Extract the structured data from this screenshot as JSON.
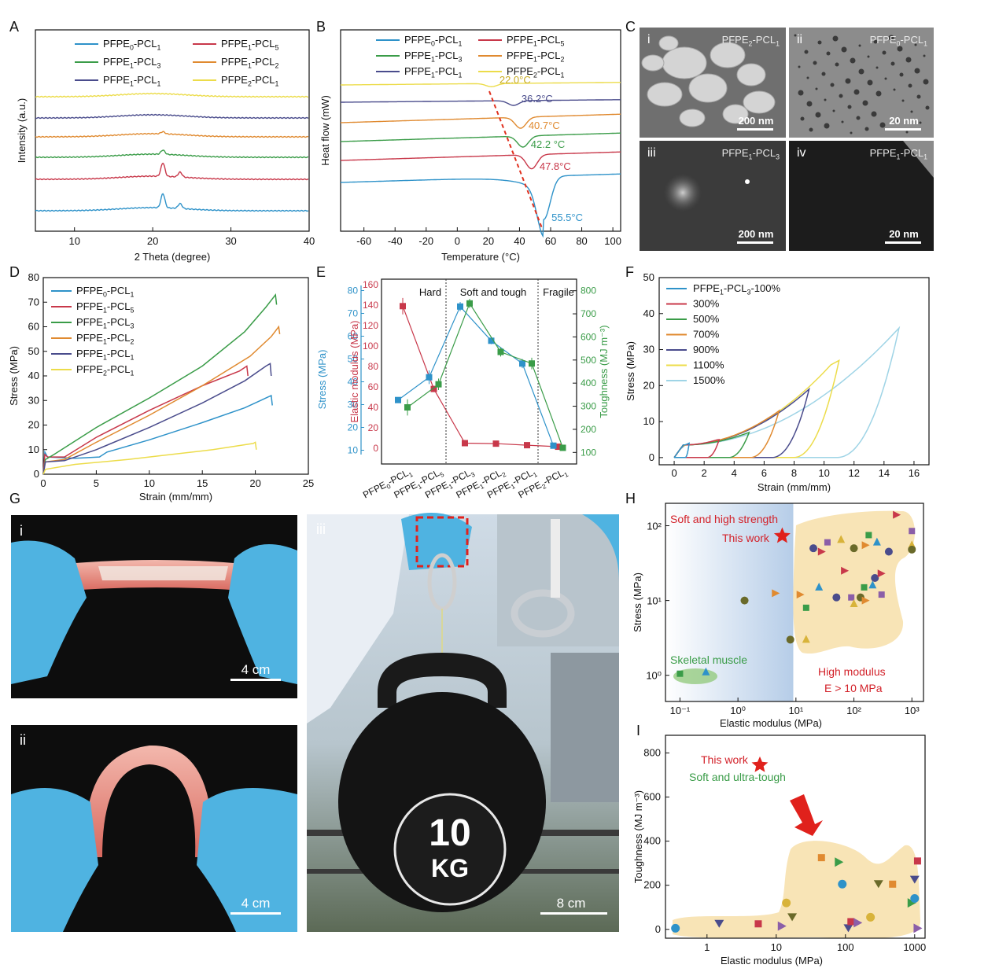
{
  "panel_letters": [
    "A",
    "B",
    "C",
    "D",
    "E",
    "F",
    "G",
    "H",
    "I"
  ],
  "colors": {
    "PFPE0-PCL1": "#2e92c9",
    "PFPE1-PCL5": "#c8384a",
    "PFPE1-PCL3": "#3a9c48",
    "PFPE1-PCL2": "#e08a30",
    "PFPE1-PCL1": "#4a4c8c",
    "PFPE2-PCL1": "#ecdc4a",
    "light": "#9fd4e6",
    "dark": "#222222"
  },
  "legend6": [
    {
      "key": "PFPE0-PCL1",
      "base": "PFPE",
      "s1": "0",
      "mid": "-PCL",
      "s2": "1"
    },
    {
      "key": "PFPE1-PCL5",
      "base": "PFPE",
      "s1": "1",
      "mid": "-PCL",
      "s2": "5"
    },
    {
      "key": "PFPE1-PCL3",
      "base": "PFPE",
      "s1": "1",
      "mid": "-PCL",
      "s2": "3"
    },
    {
      "key": "PFPE1-PCL2",
      "base": "PFPE",
      "s1": "1",
      "mid": "-PCL",
      "s2": "2"
    },
    {
      "key": "PFPE1-PCL1",
      "base": "PFPE",
      "s1": "1",
      "mid": "-PCL",
      "s2": "1"
    },
    {
      "key": "PFPE2-PCL1",
      "base": "PFPE",
      "s1": "2",
      "mid": "-PCL",
      "s2": "1"
    }
  ],
  "panelC": {
    "labels": [
      "i",
      "ii",
      "iii",
      "iv"
    ],
    "names": [
      {
        "b": "PFPE",
        "s1": "2",
        "m": "-PCL",
        "s2": "1"
      },
      {
        "b": "PFPE",
        "s1": "0",
        "m": "-PCL",
        "s2": "1"
      },
      {
        "b": "PFPE",
        "s1": "1",
        "m": "-PCL",
        "s2": "3"
      },
      {
        "b": "PFPE",
        "s1": "1",
        "m": "-PCL",
        "s2": "1"
      }
    ],
    "scales": [
      "200 nm",
      "20 nm",
      "200 nm",
      "20 nm"
    ]
  },
  "panelG": {
    "labels": [
      "i",
      "ii",
      "iii"
    ],
    "scales": [
      "4 cm",
      "4 cm",
      "8 cm"
    ],
    "kettlebell_text": [
      "10",
      "KG"
    ]
  },
  "chart_data": [
    {
      "id": "A",
      "type": "line",
      "xlabel": "2 Theta (degree)",
      "ylabel": "Intensity (a.u.)",
      "xlim": [
        5,
        40
      ],
      "xticks": [
        10,
        20,
        30,
        40
      ],
      "series": [
        {
          "key": "PFPE0-PCL1",
          "peaks": [
            [
              21.3,
              1.0
            ],
            [
              23.5,
              0.35
            ]
          ]
        },
        {
          "key": "PFPE1-PCL5",
          "peaks": [
            [
              21.3,
              0.95
            ],
            [
              23.5,
              0.35
            ]
          ]
        },
        {
          "key": "PFPE1-PCL3",
          "peaks": [
            [
              21.3,
              0.3
            ]
          ]
        },
        {
          "key": "PFPE1-PCL2",
          "peaks": [
            [
              21.3,
              0.15
            ]
          ]
        },
        {
          "key": "PFPE1-PCL1",
          "peaks": []
        },
        {
          "key": "PFPE2-PCL1",
          "peaks": []
        }
      ]
    },
    {
      "id": "B",
      "type": "line",
      "xlabel": "Temperature (°C)",
      "ylabel": "Heat flow (mW)",
      "xlim": [
        -75,
        105
      ],
      "xticks": [
        -60,
        -40,
        -20,
        0,
        20,
        40,
        60,
        80,
        100
      ],
      "series": [
        {
          "key": "PFPE0-PCL1",
          "tm": 55.5,
          "label": "55.5°C"
        },
        {
          "key": "PFPE1-PCL5",
          "tm": 47.8,
          "label": "47.8°C"
        },
        {
          "key": "PFPE1-PCL3",
          "tm": 42.2,
          "label": "42.2 °C"
        },
        {
          "key": "PFPE1-PCL2",
          "tm": 40.7,
          "label": "40.7°C"
        },
        {
          "key": "PFPE1-PCL1",
          "tm": 36.2,
          "label": "36.2°C"
        },
        {
          "key": "PFPE2-PCL1",
          "tm": 22.0,
          "label": "22.0°C"
        }
      ]
    },
    {
      "id": "D",
      "type": "line",
      "xlabel": "Strain (mm/mm)",
      "ylabel": "Stress (MPa)",
      "xlim": [
        0,
        25
      ],
      "ylim": [
        0,
        80
      ],
      "xticks": [
        0,
        5,
        10,
        15,
        20,
        25
      ],
      "yticks": [
        0,
        10,
        20,
        30,
        40,
        50,
        60,
        70,
        80
      ],
      "series": [
        {
          "key": "PFPE0-PCL1",
          "points": [
            [
              0,
              0
            ],
            [
              0.15,
              9
            ],
            [
              0.4,
              7
            ],
            [
              3,
              6.5
            ],
            [
              5.3,
              7
            ],
            [
              6,
              9
            ],
            [
              10,
              14
            ],
            [
              15,
              21
            ],
            [
              19,
              27
            ],
            [
              21,
              31
            ],
            [
              21.5,
              32
            ],
            [
              21.6,
              28
            ]
          ]
        },
        {
          "key": "PFPE1-PCL5",
          "points": [
            [
              0,
              0
            ],
            [
              0.15,
              8
            ],
            [
              0.4,
              7
            ],
            [
              2,
              7
            ],
            [
              5,
              15
            ],
            [
              10,
              26
            ],
            [
              15,
              36
            ],
            [
              18.5,
              42
            ],
            [
              19.2,
              44
            ],
            [
              19.3,
              40
            ]
          ]
        },
        {
          "key": "PFPE1-PCL3",
          "points": [
            [
              0,
              0
            ],
            [
              0.2,
              6
            ],
            [
              1,
              8
            ],
            [
              5,
              19
            ],
            [
              10,
              31
            ],
            [
              15,
              44
            ],
            [
              19,
              58
            ],
            [
              21,
              68
            ],
            [
              21.9,
              73
            ],
            [
              22,
              69
            ]
          ]
        },
        {
          "key": "PFPE1-PCL2",
          "points": [
            [
              0,
              0
            ],
            [
              0.2,
              5
            ],
            [
              2,
              6
            ],
            [
              5,
              13
            ],
            [
              10,
              24
            ],
            [
              15,
              36
            ],
            [
              19.5,
              48
            ],
            [
              21.5,
              56
            ],
            [
              22.2,
              60
            ],
            [
              22.3,
              57
            ]
          ]
        },
        {
          "key": "PFPE1-PCL1",
          "points": [
            [
              0,
              0
            ],
            [
              0.2,
              5
            ],
            [
              2,
              5.5
            ],
            [
              5,
              10
            ],
            [
              10,
              19
            ],
            [
              15,
              29
            ],
            [
              19,
              38
            ],
            [
              21,
              44
            ],
            [
              21.4,
              45
            ],
            [
              21.5,
              40
            ]
          ]
        },
        {
          "key": "PFPE2-PCL1",
          "points": [
            [
              0,
              0
            ],
            [
              0.2,
              2
            ],
            [
              3,
              4
            ],
            [
              8,
              6
            ],
            [
              12,
              8
            ],
            [
              16,
              10
            ],
            [
              19.8,
              12.5
            ],
            [
              20,
              13
            ],
            [
              20.1,
              10
            ]
          ]
        }
      ]
    },
    {
      "id": "E",
      "type": "scatter",
      "categories": [
        {
          "b": "PFPE",
          "s1": "0",
          "m": "-PCL",
          "s2": "1"
        },
        {
          "b": "PFPE",
          "s1": "1",
          "m": "-PCL",
          "s2": "5"
        },
        {
          "b": "PFPE",
          "s1": "1",
          "m": "-PCL",
          "s2": "3"
        },
        {
          "b": "PFPE",
          "s1": "1",
          "m": "-PCL",
          "s2": "2"
        },
        {
          "b": "PFPE",
          "s1": "1",
          "m": "-PCL",
          "s2": "1"
        },
        {
          "b": "PFPE",
          "s1": "2",
          "m": "-PCL",
          "s2": "1"
        }
      ],
      "regions": [
        "Hard",
        "Soft and tough",
        "Fragile"
      ],
      "ylabel_left_red": "Elastic modulus (MPa)",
      "ylabel_left_blue": "Stress (MPa)",
      "ylabel_right": "Toughness (MJ m⁻³)",
      "modulus_ticks": [
        0,
        20,
        40,
        60,
        80,
        100,
        120,
        140,
        160
      ],
      "stress_ticks": [
        10,
        20,
        30,
        40,
        50,
        60,
        70,
        80
      ],
      "toughness_ticks": [
        100,
        200,
        300,
        400,
        500,
        600,
        700,
        800
      ],
      "modulus": [
        139,
        58,
        5,
        4.5,
        3,
        1.5
      ],
      "stress": [
        32,
        42,
        73,
        58,
        48,
        12
      ],
      "toughness": [
        295,
        395,
        745,
        535,
        485,
        120
      ],
      "modulus_err": [
        8,
        3,
        1,
        1,
        1,
        1
      ],
      "stress_err": [
        1,
        3,
        2,
        1.5,
        2,
        1
      ],
      "toughness_err": [
        35,
        25,
        20,
        20,
        25,
        10
      ]
    },
    {
      "id": "F",
      "type": "line",
      "xlabel": "Strain (mm/mm)",
      "ylabel": "Stress (MPa)",
      "xlim": [
        -1,
        17
      ],
      "ylim": [
        -2,
        50
      ],
      "xticks": [
        0,
        2,
        4,
        6,
        8,
        10,
        12,
        14,
        16
      ],
      "yticks": [
        0,
        10,
        20,
        30,
        40,
        50
      ],
      "legend_title": {
        "b": "PFPE",
        "s1": "1",
        "m": "-PCL",
        "s2": "3",
        "t": "-100%"
      },
      "series": [
        {
          "name": "PFPE1-PCL3-100%",
          "color": "#2e92c9",
          "max_strain": 1.0,
          "peak": 4.0
        },
        {
          "name": "300%",
          "color": "#c8384a",
          "max_strain": 3.0,
          "peak": 5.0
        },
        {
          "name": "500%",
          "color": "#3a9c48",
          "max_strain": 5.0,
          "peak": 7.0
        },
        {
          "name": "700%",
          "color": "#e08a30",
          "max_strain": 7.0,
          "peak": 13.0
        },
        {
          "name": "900%",
          "color": "#4a4c8c",
          "max_strain": 9.0,
          "peak": 19.0
        },
        {
          "name": "1100%",
          "color": "#ecdc4a",
          "max_strain": 11.0,
          "peak": 27.0
        },
        {
          "name": "1500%",
          "color": "#9fd4e6",
          "max_strain": 15.0,
          "peak": 36.0
        }
      ]
    },
    {
      "id": "H",
      "type": "scatter",
      "xlabel": "Elastic modulus (MPa)",
      "ylabel": "Stress (MPa)",
      "xscale": "log",
      "yscale": "log",
      "xticks": [
        "10⁻¹",
        "10⁰",
        "10¹",
        "10²",
        "10³"
      ],
      "yticks": [
        "10⁰",
        "10¹",
        "10²"
      ],
      "annotations": [
        "Soft and high strength",
        "This work",
        "Skeletal muscle",
        "High modulus",
        "E > 10 MPa"
      ],
      "this_work": {
        "x": 5.8,
        "y": 73
      },
      "points": [
        [
          1.3,
          10
        ],
        [
          4.5,
          12.5
        ],
        [
          0.1,
          1.05
        ],
        [
          0.28,
          1.1
        ],
        [
          20,
          50
        ],
        [
          28,
          45
        ],
        [
          35,
          60
        ],
        [
          60,
          65
        ],
        [
          100,
          50
        ],
        [
          160,
          55
        ],
        [
          180,
          75
        ],
        [
          250,
          60
        ],
        [
          400,
          45
        ],
        [
          550,
          140
        ],
        [
          1000,
          85
        ],
        [
          1000,
          55
        ],
        [
          1000,
          48
        ],
        [
          12,
          12
        ],
        [
          15,
          8
        ],
        [
          25,
          15
        ],
        [
          50,
          11
        ],
        [
          70,
          25
        ],
        [
          90,
          11
        ],
        [
          100,
          9
        ],
        [
          130,
          11
        ],
        [
          160,
          10
        ],
        [
          150,
          15
        ],
        [
          210,
          16
        ],
        [
          230,
          20
        ],
        [
          300,
          23
        ],
        [
          300,
          12
        ],
        [
          15,
          3
        ],
        [
          8,
          3
        ]
      ]
    },
    {
      "id": "I",
      "type": "scatter",
      "xlabel": "Elastic modulus (MPa)",
      "ylabel": "Toughness (MJ m⁻³)",
      "xscale": "log",
      "xticks": [
        1,
        10,
        100,
        1000
      ],
      "yticks": [
        0,
        200,
        400,
        600,
        800
      ],
      "annotations": [
        "This work",
        "Soft and ultra-tough"
      ],
      "this_work": {
        "x": 5.8,
        "y": 745
      },
      "points": [
        [
          0.35,
          5
        ],
        [
          1.5,
          25
        ],
        [
          5.5,
          25
        ],
        [
          12,
          15
        ],
        [
          14,
          120
        ],
        [
          17,
          55
        ],
        [
          45,
          325
        ],
        [
          80,
          305
        ],
        [
          90,
          205
        ],
        [
          110,
          5
        ],
        [
          120,
          35
        ],
        [
          150,
          30
        ],
        [
          230,
          55
        ],
        [
          300,
          205
        ],
        [
          480,
          205
        ],
        [
          900,
          120
        ],
        [
          1000,
          140
        ],
        [
          1000,
          225
        ],
        [
          1100,
          310
        ],
        [
          1100,
          5
        ]
      ]
    }
  ]
}
